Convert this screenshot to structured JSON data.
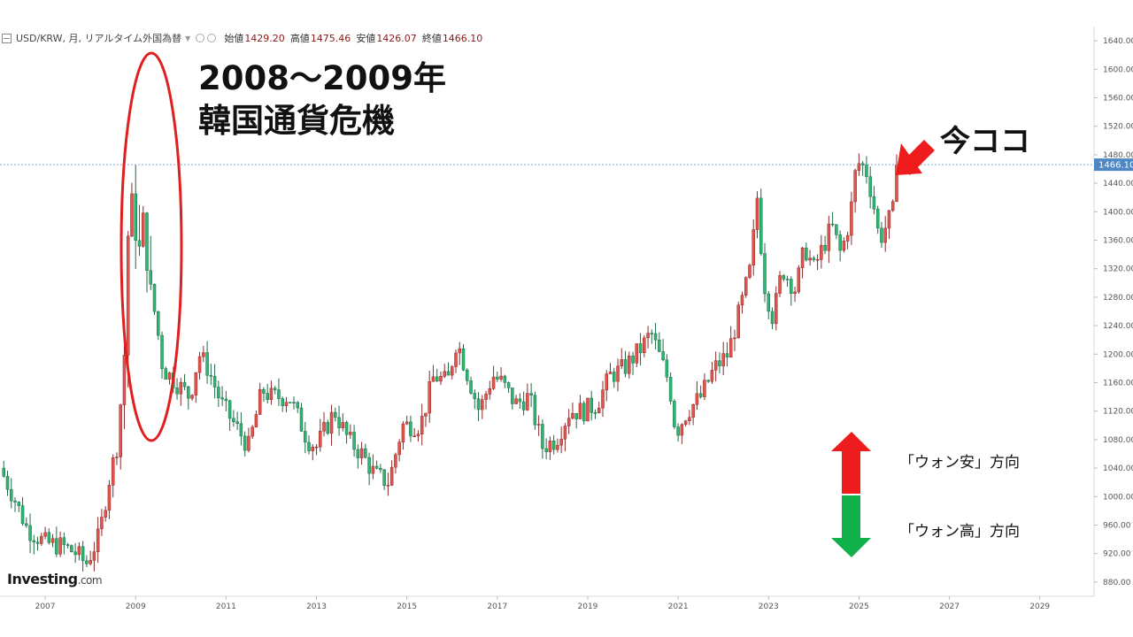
{
  "header": {
    "symbol": "USD/KRW, 月, リアルタイム外国為替",
    "open_label": "始値",
    "open_value": "1429.20",
    "high_label": "高値",
    "high_value": "1475.46",
    "low_label": "安値",
    "low_value": "1426.07",
    "close_label": "終値",
    "close_value": "1466.10"
  },
  "annotations": {
    "crisis_line1": "2008～2009年",
    "crisis_line2": "韓国通貨危機",
    "now": "今ココ",
    "weak_won": "「ウォン安」方向",
    "strong_won": "「ウォン高」方向"
  },
  "logo": {
    "brand": "Investing",
    "suffix": ".com"
  },
  "colors": {
    "up": "#e5534b",
    "down": "#2bb673",
    "price_line": "#7aa7d8",
    "crisis_ellipse": "#e02020",
    "arrow_red": "#ee1c1c",
    "arrow_green": "#10b04a",
    "price_tag": "#4d88c4"
  },
  "chart_data": {
    "type": "candlestick",
    "title": "",
    "xlabel": "",
    "ylabel": "",
    "ylim": [
      860,
      1660
    ],
    "xlim": [
      2006.0,
      2030.2
    ],
    "x_ticks": [
      "2007",
      "2009",
      "2011",
      "2013",
      "2015",
      "2017",
      "2019",
      "2021",
      "2023",
      "2025",
      "2027",
      "2029"
    ],
    "y_ticks": [
      "880.00",
      "920.00",
      "960.00",
      "1000.00",
      "1040.00",
      "1080.00",
      "1120.00",
      "1160.00",
      "1200.00",
      "1240.00",
      "1280.00",
      "1320.00",
      "1360.00",
      "1400.00",
      "1440.00",
      "1480.00",
      "1520.00",
      "1560.00",
      "1600.00",
      "1640.00"
    ],
    "current_price": "1466.10",
    "close_path_points": [
      [
        2006.0,
        1040
      ],
      [
        2006.3,
        1000
      ],
      [
        2006.6,
        955
      ],
      [
        2007.0,
        935
      ],
      [
        2007.4,
        930
      ],
      [
        2007.7,
        920
      ],
      [
        2007.9,
        905
      ],
      [
        2008.2,
        945
      ],
      [
        2008.4,
        1020
      ],
      [
        2008.6,
        1075
      ],
      [
        2008.75,
        1200
      ],
      [
        2008.85,
        1400
      ],
      [
        2008.95,
        1420
      ],
      [
        2009.05,
        1320
      ],
      [
        2009.15,
        1400
      ],
      [
        2009.25,
        1330
      ],
      [
        2009.35,
        1280
      ],
      [
        2009.45,
        1250
      ],
      [
        2009.6,
        1180
      ],
      [
        2009.9,
        1160
      ],
      [
        2010.2,
        1140
      ],
      [
        2010.4,
        1200
      ],
      [
        2010.6,
        1180
      ],
      [
        2010.9,
        1130
      ],
      [
        2011.3,
        1090
      ],
      [
        2011.5,
        1070
      ],
      [
        2011.8,
        1150
      ],
      [
        2012.0,
        1140
      ],
      [
        2012.4,
        1140
      ],
      [
        2012.8,
        1080
      ],
      [
        2013.0,
        1070
      ],
      [
        2013.4,
        1120
      ],
      [
        2013.7,
        1080
      ],
      [
        2014.0,
        1060
      ],
      [
        2014.3,
        1030
      ],
      [
        2014.6,
        1020
      ],
      [
        2014.9,
        1100
      ],
      [
        2015.3,
        1100
      ],
      [
        2015.6,
        1170
      ],
      [
        2015.9,
        1160
      ],
      [
        2016.1,
        1220
      ],
      [
        2016.4,
        1160
      ],
      [
        2016.6,
        1120
      ],
      [
        2016.9,
        1170
      ],
      [
        2017.1,
        1160
      ],
      [
        2017.4,
        1130
      ],
      [
        2017.7,
        1140
      ],
      [
        2018.0,
        1070
      ],
      [
        2018.3,
        1080
      ],
      [
        2018.6,
        1120
      ],
      [
        2018.9,
        1120
      ],
      [
        2019.2,
        1130
      ],
      [
        2019.5,
        1170
      ],
      [
        2019.8,
        1180
      ],
      [
        2020.2,
        1210
      ],
      [
        2020.4,
        1230
      ],
      [
        2020.8,
        1160
      ],
      [
        2020.95,
        1090
      ],
      [
        2021.2,
        1120
      ],
      [
        2021.5,
        1140
      ],
      [
        2021.8,
        1180
      ],
      [
        2022.1,
        1200
      ],
      [
        2022.4,
        1270
      ],
      [
        2022.6,
        1320
      ],
      [
        2022.75,
        1420
      ],
      [
        2022.9,
        1300
      ],
      [
        2023.1,
        1250
      ],
      [
        2023.3,
        1320
      ],
      [
        2023.6,
        1290
      ],
      [
        2023.8,
        1350
      ],
      [
        2024.0,
        1320
      ],
      [
        2024.2,
        1350
      ],
      [
        2024.4,
        1380
      ],
      [
        2024.6,
        1340
      ],
      [
        2024.8,
        1390
      ],
      [
        2024.95,
        1470
      ],
      [
        2025.15,
        1460
      ],
      [
        2025.3,
        1420
      ],
      [
        2025.45,
        1360
      ],
      [
        2025.6,
        1380
      ],
      [
        2025.75,
        1400
      ],
      [
        2025.9,
        1466.1
      ]
    ]
  }
}
